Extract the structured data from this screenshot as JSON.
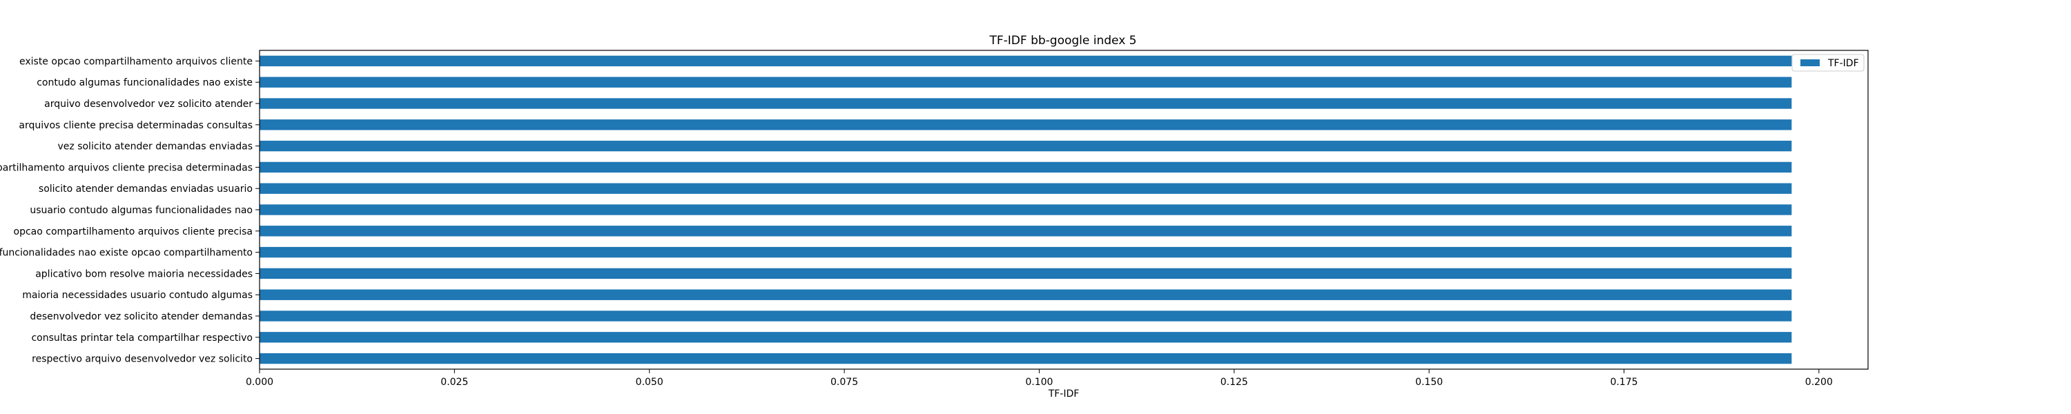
{
  "chart_data": {
    "type": "bar",
    "orientation": "horizontal",
    "title": "TF-IDF bb-google index 5",
    "xlabel": "TF-IDF",
    "ylabel": "",
    "xlim": [
      0,
      0.2063
    ],
    "xticks": [
      "0.000",
      "0.025",
      "0.050",
      "0.075",
      "0.100",
      "0.125",
      "0.150",
      "0.175",
      "0.200"
    ],
    "xtick_values": [
      0,
      0.025,
      0.05,
      0.075,
      0.1,
      0.125,
      0.15,
      0.175,
      0.2
    ],
    "grid": false,
    "legend": {
      "position": "top-right"
    },
    "series": [
      {
        "name": "TF-IDF",
        "color": "#1f77b4"
      }
    ],
    "categories": [
      "existe opcao compartilhamento arquivos cliente",
      "contudo algumas funcionalidades nao existe",
      "arquivo desenvolvedor vez solicito atender",
      "arquivos cliente precisa determinadas consultas",
      "vez solicito atender demandas enviadas",
      "compartilhamento arquivos cliente precisa determinadas",
      "solicito atender demandas enviadas usuario",
      "usuario contudo algumas funcionalidades nao",
      "opcao compartilhamento arquivos cliente precisa",
      "funcionalidades nao existe opcao compartilhamento",
      "aplicativo bom resolve maioria necessidades",
      "maioria necessidades usuario contudo algumas",
      "desenvolvedor vez solicito atender demandas",
      "consultas printar tela compartilhar respectivo",
      "respectivo arquivo desenvolvedor vez solicito"
    ],
    "values": [
      0.1965,
      0.1965,
      0.1965,
      0.1965,
      0.1965,
      0.1965,
      0.1965,
      0.1965,
      0.1965,
      0.1965,
      0.1965,
      0.1965,
      0.1965,
      0.1965,
      0.1965
    ]
  }
}
